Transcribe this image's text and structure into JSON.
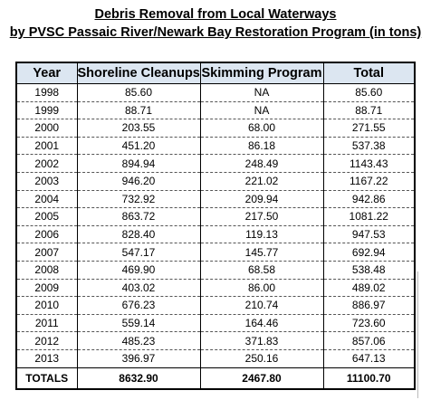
{
  "title": {
    "line1": "Debris Removal from Local Waterways",
    "line2": "by PVSC Passaic River/Newark Bay Restoration Program (in tons)"
  },
  "table": {
    "headers": [
      "Year",
      "Shoreline Cleanups",
      "Skimming Program",
      "Total"
    ],
    "rows": [
      [
        "1998",
        "85.60",
        "NA",
        "85.60"
      ],
      [
        "1999",
        "88.71",
        "NA",
        "88.71"
      ],
      [
        "2000",
        "203.55",
        "68.00",
        "271.55"
      ],
      [
        "2001",
        "451.20",
        "86.18",
        "537.38"
      ],
      [
        "2002",
        "894.94",
        "248.49",
        "1143.43"
      ],
      [
        "2003",
        "946.20",
        "221.02",
        "1167.22"
      ],
      [
        "2004",
        "732.92",
        "209.94",
        "942.86"
      ],
      [
        "2005",
        "863.72",
        "217.50",
        "1081.22"
      ],
      [
        "2006",
        "828.40",
        "119.13",
        "947.53"
      ],
      [
        "2007",
        "547.17",
        "145.77",
        "692.94"
      ],
      [
        "2008",
        "469.90",
        "68.58",
        "538.48"
      ],
      [
        "2009",
        "403.02",
        "86.00",
        "489.02"
      ],
      [
        "2010",
        "676.23",
        "210.74",
        "886.97"
      ],
      [
        "2011",
        "559.14",
        "164.46",
        "723.60"
      ],
      [
        "2012",
        "485.23",
        "371.83",
        "857.06"
      ],
      [
        "2013",
        "396.97",
        "250.16",
        "647.13"
      ]
    ],
    "totals": [
      "TOTALS",
      "8632.90",
      "2467.80",
      "11100.70"
    ]
  },
  "colors": {
    "header_background": "#dce6f1",
    "border": "#000000"
  }
}
